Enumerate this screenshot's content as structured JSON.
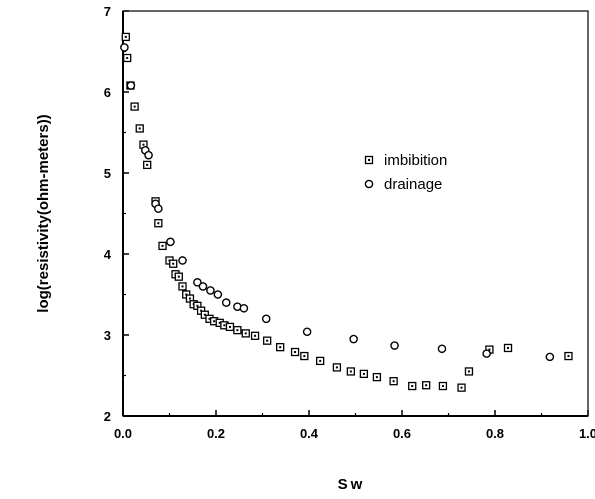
{
  "chart_data": {
    "type": "scatter",
    "title": "",
    "xlabel": "Sw",
    "ylabel": "log(resistivity(ohm-meters))",
    "xlim": [
      0.0,
      1.0
    ],
    "ylim": [
      2,
      7
    ],
    "x_ticks": [
      "0.0",
      "0.2",
      "0.4",
      "0.6",
      "0.8",
      "1.0"
    ],
    "y_ticks": [
      "2",
      "3",
      "4",
      "5",
      "6",
      "7"
    ],
    "grid": false,
    "legend_position": "upper-right-inside",
    "series": [
      {
        "name": "imbibition",
        "marker": "square-dot",
        "points": [
          [
            0.006,
            6.68
          ],
          [
            0.009,
            6.42
          ],
          [
            0.016,
            6.08
          ],
          [
            0.025,
            5.82
          ],
          [
            0.036,
            5.55
          ],
          [
            0.044,
            5.35
          ],
          [
            0.052,
            5.1
          ],
          [
            0.07,
            4.65
          ],
          [
            0.076,
            4.38
          ],
          [
            0.085,
            4.1
          ],
          [
            0.1,
            3.92
          ],
          [
            0.108,
            3.88
          ],
          [
            0.113,
            3.75
          ],
          [
            0.12,
            3.72
          ],
          [
            0.128,
            3.6
          ],
          [
            0.136,
            3.5
          ],
          [
            0.144,
            3.45
          ],
          [
            0.152,
            3.38
          ],
          [
            0.16,
            3.36
          ],
          [
            0.168,
            3.3
          ],
          [
            0.176,
            3.25
          ],
          [
            0.186,
            3.2
          ],
          [
            0.196,
            3.17
          ],
          [
            0.208,
            3.15
          ],
          [
            0.218,
            3.12
          ],
          [
            0.23,
            3.1
          ],
          [
            0.246,
            3.06
          ],
          [
            0.264,
            3.02
          ],
          [
            0.284,
            2.99
          ],
          [
            0.31,
            2.93
          ],
          [
            0.338,
            2.85
          ],
          [
            0.37,
            2.79
          ],
          [
            0.39,
            2.74
          ],
          [
            0.424,
            2.68
          ],
          [
            0.46,
            2.6
          ],
          [
            0.49,
            2.55
          ],
          [
            0.518,
            2.52
          ],
          [
            0.546,
            2.48
          ],
          [
            0.582,
            2.43
          ],
          [
            0.622,
            2.37
          ],
          [
            0.652,
            2.38
          ],
          [
            0.688,
            2.37
          ],
          [
            0.728,
            2.35
          ],
          [
            0.744,
            2.55
          ],
          [
            0.788,
            2.82
          ],
          [
            0.828,
            2.84
          ],
          [
            0.958,
            2.74
          ]
        ]
      },
      {
        "name": "drainage",
        "marker": "circle",
        "points": [
          [
            0.003,
            6.55
          ],
          [
            0.017,
            6.08
          ],
          [
            0.048,
            5.28
          ],
          [
            0.055,
            5.22
          ],
          [
            0.07,
            4.62
          ],
          [
            0.076,
            4.56
          ],
          [
            0.102,
            4.15
          ],
          [
            0.128,
            3.92
          ],
          [
            0.16,
            3.65
          ],
          [
            0.172,
            3.6
          ],
          [
            0.188,
            3.55
          ],
          [
            0.204,
            3.5
          ],
          [
            0.222,
            3.4
          ],
          [
            0.246,
            3.35
          ],
          [
            0.26,
            3.33
          ],
          [
            0.308,
            3.2
          ],
          [
            0.396,
            3.04
          ],
          [
            0.496,
            2.95
          ],
          [
            0.584,
            2.87
          ],
          [
            0.686,
            2.83
          ],
          [
            0.782,
            2.77
          ],
          [
            0.918,
            2.73
          ]
        ]
      }
    ]
  },
  "colors": {
    "background": "#ffffff",
    "ink": "#000000"
  }
}
